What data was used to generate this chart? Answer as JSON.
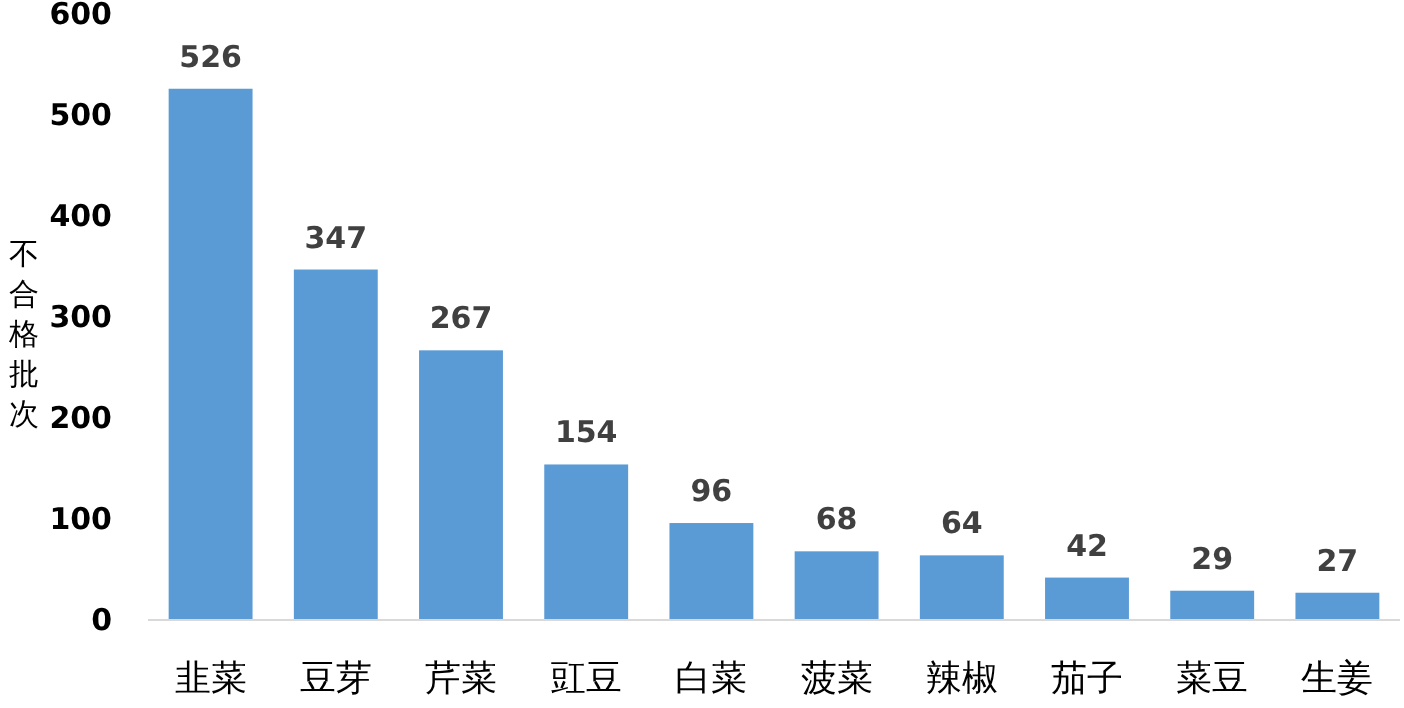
{
  "chart_data": {
    "type": "bar",
    "ylabel": "不合格批次",
    "categories": [
      "韭菜",
      "豆芽",
      "芹菜",
      "豇豆",
      "白菜",
      "菠菜",
      "辣椒",
      "茄子",
      "菜豆",
      "生姜"
    ],
    "values": [
      526,
      347,
      267,
      154,
      96,
      68,
      64,
      42,
      29,
      27
    ],
    "color": "#5b9bd5",
    "ylim": [
      0,
      600
    ],
    "yticks": [
      0,
      100,
      200,
      300,
      400,
      500,
      600
    ],
    "data_labels": true,
    "grid": false
  }
}
